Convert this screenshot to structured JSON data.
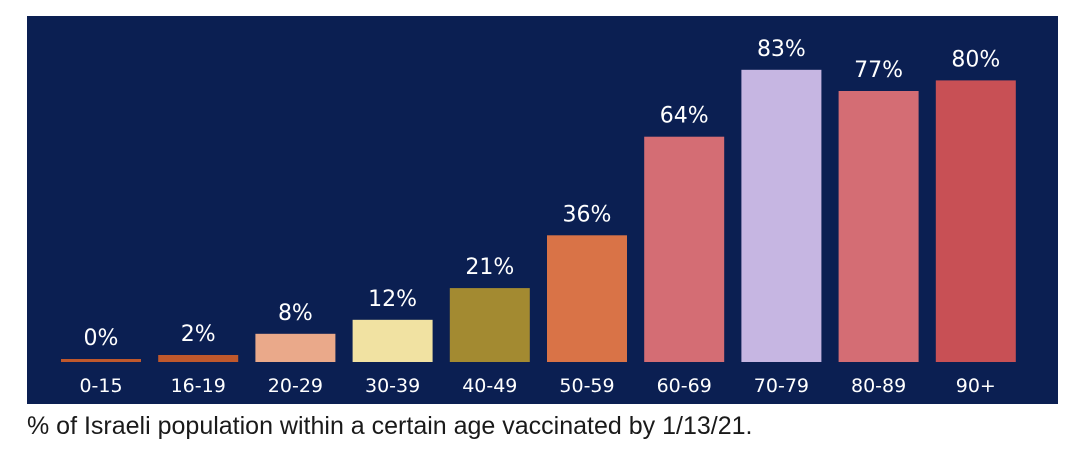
{
  "chart_data": {
    "type": "bar",
    "categories": [
      "0-15",
      "16-19",
      "20-29",
      "30-39",
      "40-49",
      "50-59",
      "60-69",
      "70-79",
      "80-89",
      "90+"
    ],
    "values": [
      0,
      2,
      8,
      12,
      21,
      36,
      64,
      83,
      77,
      80
    ],
    "data_labels": [
      "0%",
      "2%",
      "8%",
      "12%",
      "21%",
      "36%",
      "64%",
      "83%",
      "77%",
      "80%"
    ],
    "bar_colors": [
      "#c0582c",
      "#c0582c",
      "#eaa98a",
      "#f1e2a2",
      "#a38a31",
      "#d97347",
      "#d46d74",
      "#c6b6e2",
      "#d46d74",
      "#c85055"
    ],
    "background_color": "#0b1f52",
    "label_color": "#ffffff",
    "ylim": [
      0,
      100
    ],
    "grid": false,
    "legend": "none"
  },
  "caption": "% of Israeli population within a certain age vaccinated by 1/13/21."
}
